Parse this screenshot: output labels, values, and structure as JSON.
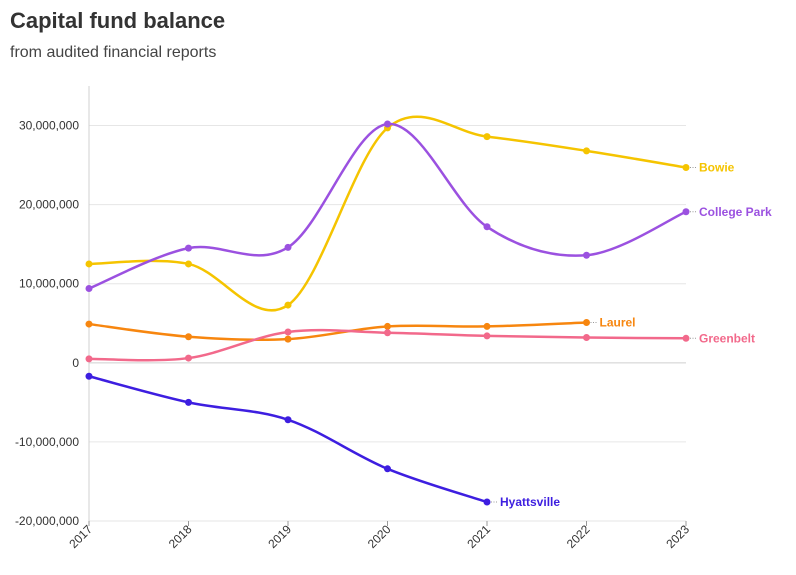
{
  "chart_data": {
    "type": "line",
    "title": "Capital fund balance",
    "subtitle": "from audited financial reports",
    "xlabel": "",
    "ylabel": "",
    "x": [
      "2017",
      "2018",
      "2019",
      "2020",
      "2021",
      "2022",
      "2023"
    ],
    "ylim": [
      -20000000,
      35000000
    ],
    "yticks": [
      -20000000,
      -10000000,
      0,
      10000000,
      20000000,
      30000000
    ],
    "ytick_labels": [
      "-20,000,000",
      "-10,000,000",
      "0",
      "10,000,000",
      "20,000,000",
      "30,000,000"
    ],
    "grid": true,
    "series": [
      {
        "name": "Bowie",
        "color": "#f5c400",
        "values": [
          12500000,
          12500000,
          7300000,
          29700000,
          28600000,
          26800000,
          24700000
        ]
      },
      {
        "name": "College Park",
        "color": "#9b51e0",
        "values": [
          9400000,
          14500000,
          14600000,
          30200000,
          17200000,
          13600000,
          19100000
        ]
      },
      {
        "name": "Laurel",
        "color": "#f7860f",
        "values": [
          4900000,
          3300000,
          3000000,
          4600000,
          4600000,
          5100000,
          null
        ]
      },
      {
        "name": "Greenbelt",
        "color": "#f2698b",
        "values": [
          500000,
          600000,
          3900000,
          3800000,
          3400000,
          3200000,
          3100000
        ]
      },
      {
        "name": "Hyattsville",
        "color": "#3d1ee0",
        "values": [
          -1700000,
          -5000000,
          -7200000,
          -13400000,
          -17600000,
          null,
          null
        ]
      }
    ]
  }
}
